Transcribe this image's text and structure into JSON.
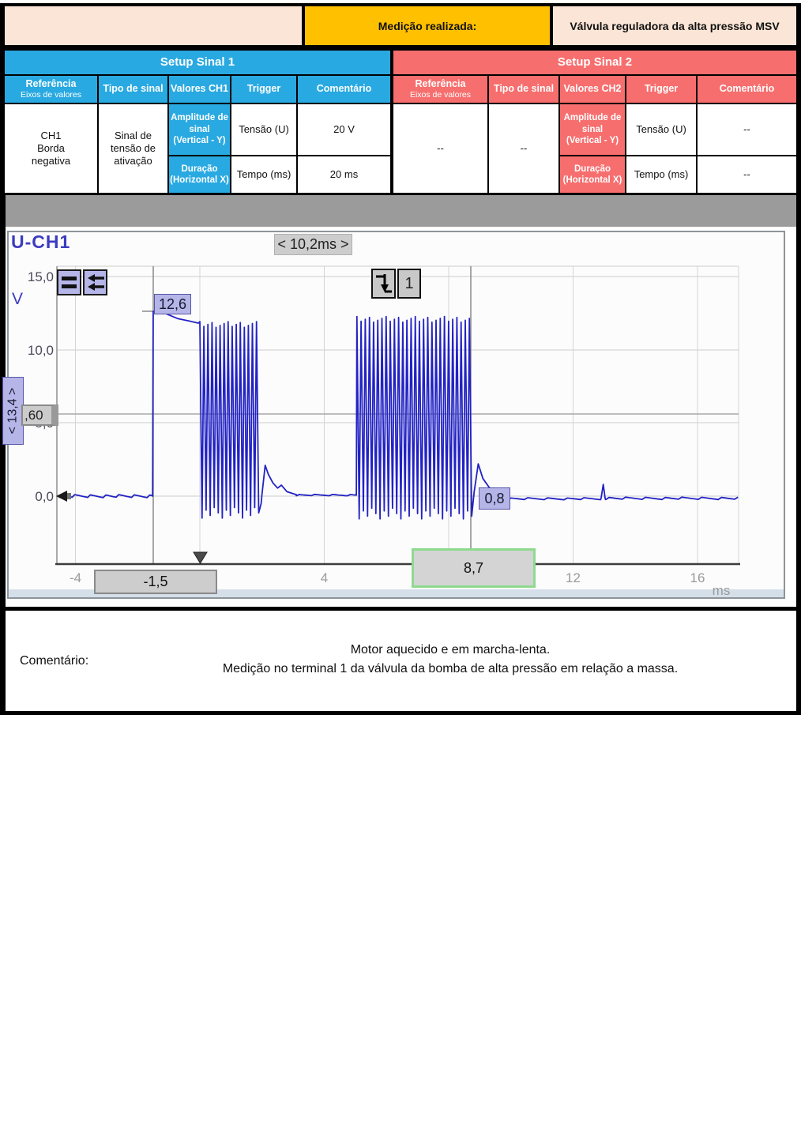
{
  "header": {
    "measure_label": "Medição realizada:",
    "measure_value": "Válvula reguladora da alta pressão MSV"
  },
  "setup1": {
    "title": "Setup Sinal 1",
    "columns": {
      "ref": "Referência",
      "ref_sub": "Eixos de valores",
      "tipo": "Tipo de sinal",
      "valores": "Valores CH1",
      "trigger": "Trigger",
      "comentario": "Comentário"
    },
    "amp": {
      "label": "Amplitude de sinal",
      "sub": "(Vertical - Y)",
      "tipo": "Tensão (U)",
      "valor": "20 V"
    },
    "dur": {
      "label": "Duração",
      "sub": "(Horizontal X)",
      "tipo": "Tempo (ms)",
      "valor": "20 ms"
    },
    "trigger_value": "CH1\nBorda\nnegativa",
    "comentario_value": "Sinal de tensão de ativação"
  },
  "setup2": {
    "title": "Setup Sinal 2",
    "columns": {
      "ref": "Referência",
      "ref_sub": "Eixos de valores",
      "tipo": "Tipo de sinal",
      "valores": "Valores CH2",
      "trigger": "Trigger",
      "comentario": "Comentário"
    },
    "amp": {
      "label": "Amplitude de sinal",
      "sub": "(Vertical - Y)",
      "tipo": "Tensão (U)",
      "valor": "--"
    },
    "dur": {
      "label": "Duração",
      "sub": "(Horizontal X)",
      "tipo": "Tempo (ms)",
      "valor": "--"
    },
    "trigger_value": "--",
    "comentario_value": "--"
  },
  "scope": {
    "channel": "U-CH1",
    "delta_time": "< 10,2ms >",
    "y_unit": "V",
    "x_unit": "ms",
    "markers": {
      "v_high": "12,6",
      "v_low": "0,8",
      "v_delta": "< 13,4 >",
      "v_cursor": ",60",
      "t1": "-1,5",
      "t2": "8,7"
    },
    "trigger_badge": "1"
  },
  "comment": {
    "label": "Comentário:",
    "line1": "Motor aquecido e em marcha-lenta.",
    "line2": "Medição no terminal 1 da válvula da bomba de alta pressão em relação a massa."
  },
  "colors": {
    "accent_blue": "#29a9e1",
    "accent_red": "#f76e6e",
    "accent_yellow": "#ffc000",
    "cream": "#fbe5d6",
    "trace_blue": "#2222c4",
    "cursor_green": "#8fd98f",
    "lavender": "#b5b5e8"
  },
  "chart_data": {
    "type": "line",
    "title": "U-CH1",
    "xlabel": "ms",
    "ylabel": "V",
    "xlim": [
      -4.6,
      17.3
    ],
    "ylim": [
      -4.7,
      15.6
    ],
    "grid": true,
    "x_ticks": [
      -4,
      0,
      4,
      8,
      12,
      16
    ],
    "x_tick_labels": [
      "-4",
      "0",
      "4",
      "8",
      "12",
      "16"
    ],
    "y_ticks": [
      15,
      10,
      5,
      0
    ],
    "y_tick_labels": [
      "15,0",
      "10,0",
      "5,0",
      "0,0"
    ],
    "cursors": {
      "time_ms": [
        -1.5,
        8.7
      ],
      "time_delta_ms": 10.2,
      "voltage_cursor_v": 5.6,
      "voltage_delta_v": 13.4,
      "marker_high_v": 12.6,
      "marker_low_v": 0.8
    },
    "trigger": {
      "channel": 1,
      "edge": "falling",
      "time_ms": 0,
      "marker": "triangle-down"
    },
    "series": [
      {
        "name": "U-CH1",
        "color": "#2222c4",
        "segments": [
          {
            "type": "noise",
            "t0": -4.52,
            "t1": -1.53,
            "base": 0.0,
            "amp": 0.1,
            "n": 36
          },
          {
            "type": "line",
            "points": [
              [
                -1.52,
                0.0
              ],
              [
                -1.5,
                12.6
              ]
            ]
          },
          {
            "type": "line",
            "points": [
              [
                -1.5,
                12.6
              ],
              [
                -1.1,
                12.45
              ],
              [
                -0.7,
                12.1
              ],
              [
                -0.35,
                11.95
              ],
              [
                -0.05,
                11.8
              ]
            ]
          },
          {
            "type": "pwm",
            "t0": 0.0,
            "t1": 1.95,
            "hi": 11.9,
            "lo": -1.5,
            "cycles": 15
          },
          {
            "type": "line",
            "points": [
              [
                1.97,
                -0.5
              ],
              [
                2.0,
                0.2
              ],
              [
                2.1,
                2.1
              ],
              [
                2.2,
                1.5
              ],
              [
                2.35,
                0.9
              ],
              [
                2.5,
                0.55
              ],
              [
                2.62,
                0.75
              ],
              [
                2.8,
                0.3
              ],
              [
                3.1,
                0.1
              ]
            ]
          },
          {
            "type": "noise",
            "t0": 3.1,
            "t1": 5.03,
            "base": 0.07,
            "amp": 0.05,
            "n": 20
          },
          {
            "type": "pwm",
            "t0": 5.05,
            "t1": 8.8,
            "hi": 12.25,
            "lo": -1.55,
            "cycles": 28
          },
          {
            "type": "line",
            "points": [
              [
                8.82,
                0.3
              ],
              [
                8.95,
                2.2
              ],
              [
                9.1,
                1.2
              ],
              [
                9.3,
                0.6
              ],
              [
                9.6,
                0.2
              ],
              [
                9.9,
                -0.2
              ]
            ]
          },
          {
            "type": "noise",
            "t0": 9.9,
            "t1": 12.88,
            "base": -0.18,
            "amp": 0.07,
            "n": 28
          },
          {
            "type": "line",
            "points": [
              [
                12.9,
                -0.15
              ],
              [
                12.97,
                0.8
              ],
              [
                13.03,
                -0.18
              ]
            ]
          },
          {
            "type": "noise",
            "t0": 13.05,
            "t1": 17.3,
            "base": -0.15,
            "amp": 0.08,
            "n": 40
          }
        ]
      }
    ]
  }
}
